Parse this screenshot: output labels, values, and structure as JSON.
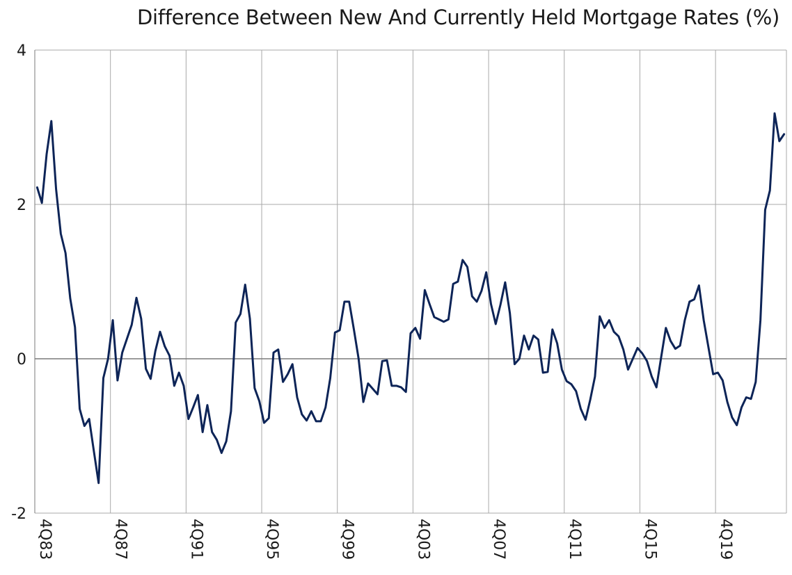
{
  "chart_data": {
    "type": "line",
    "title": "Difference Between New And Currently Held Mortgage Rates (%)",
    "xlabel": "",
    "ylabel": "",
    "ylim": [
      -2,
      4
    ],
    "yticks": [
      4,
      2,
      0,
      -2
    ],
    "x_tick_labels": [
      "4Q83",
      "4Q87",
      "4Q91",
      "4Q95",
      "4Q99",
      "4Q03",
      "4Q07",
      "4Q11",
      "4Q15",
      "4Q19"
    ],
    "grid": true,
    "legend": "none",
    "line_color": "#0d2457",
    "x_start": "4Q83",
    "x_frequency": "quarterly",
    "series": [
      {
        "values": [
          2.22,
          2.02,
          2.65,
          3.08,
          2.2,
          1.62,
          1.37,
          0.78,
          0.41,
          -0.65,
          -0.87,
          -0.78,
          -1.2,
          -1.61,
          -0.25,
          0.0,
          0.5,
          -0.28,
          0.08,
          0.26,
          0.44,
          0.79,
          0.52,
          -0.13,
          -0.26,
          0.1,
          0.35,
          0.16,
          0.04,
          -0.35,
          -0.18,
          -0.35,
          -0.78,
          -0.63,
          -0.47,
          -0.95,
          -0.6,
          -0.95,
          -1.05,
          -1.22,
          -1.07,
          -0.68,
          0.47,
          0.58,
          0.96,
          0.52,
          -0.38,
          -0.55,
          -0.83,
          -0.77,
          0.08,
          0.12,
          -0.3,
          -0.2,
          -0.07,
          -0.5,
          -0.72,
          -0.8,
          -0.68,
          -0.81,
          -0.81,
          -0.63,
          -0.25,
          0.34,
          0.37,
          0.74,
          0.74,
          0.38,
          0.0,
          -0.56,
          -0.32,
          -0.39,
          -0.46,
          -0.03,
          -0.02,
          -0.35,
          -0.35,
          -0.37,
          -0.43,
          0.33,
          0.4,
          0.26,
          0.89,
          0.71,
          0.54,
          0.51,
          0.48,
          0.51,
          0.97,
          1.0,
          1.28,
          1.19,
          0.81,
          0.74,
          0.88,
          1.12,
          0.71,
          0.45,
          0.7,
          0.99,
          0.59,
          -0.07,
          0.0,
          0.3,
          0.12,
          0.3,
          0.25,
          -0.18,
          -0.17,
          0.38,
          0.2,
          -0.14,
          -0.29,
          -0.33,
          -0.42,
          -0.65,
          -0.79,
          -0.53,
          -0.23,
          0.55,
          0.4,
          0.5,
          0.35,
          0.29,
          0.12,
          -0.14,
          0.0,
          0.14,
          0.07,
          -0.03,
          -0.23,
          -0.37,
          0.02,
          0.4,
          0.23,
          0.13,
          0.17,
          0.5,
          0.74,
          0.77,
          0.95,
          0.5,
          0.15,
          -0.2,
          -0.18,
          -0.28,
          -0.56,
          -0.76,
          -0.86,
          -0.63,
          -0.5,
          -0.52,
          -0.3,
          0.5,
          1.93,
          2.18,
          3.18,
          2.82,
          2.91
        ]
      }
    ]
  }
}
